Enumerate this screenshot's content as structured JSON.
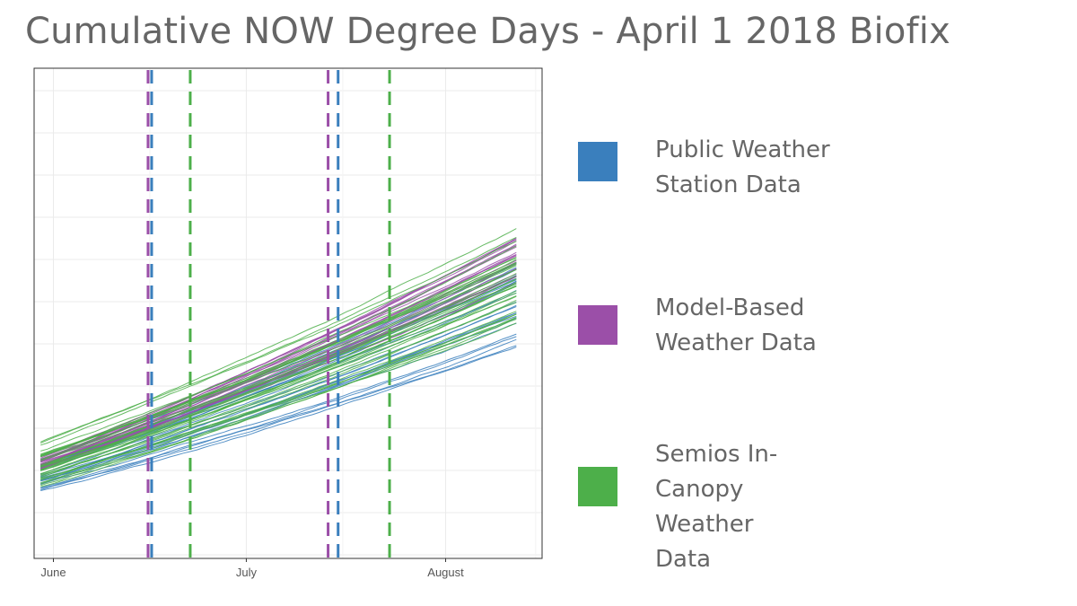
{
  "title": "Cumulative NOW Degree Days - April 1 2018 Biofix",
  "legend": [
    {
      "label": "Public Weather Station Data",
      "color": "#3a7fbd"
    },
    {
      "label": "Model-Based Weather Data",
      "color": "#9b4fa8"
    },
    {
      "label": "Semios In-Canopy Weather Data",
      "color": "#4daf4a"
    }
  ],
  "chart_data": {
    "type": "line",
    "title": "",
    "xlabel": "",
    "ylabel": "",
    "x_ticks": [
      {
        "label": "June",
        "date": "2018-06-01"
      },
      {
        "label": "July",
        "date": "2018-07-01"
      },
      {
        "label": "August",
        "date": "2018-08-01"
      }
    ],
    "x_range": [
      "2018-05-29",
      "2018-08-16"
    ],
    "y_range": [
      0,
      1
    ],
    "x_start": "2018-05-30",
    "x_end": "2018-08-12",
    "grid": true,
    "legend_position": "right",
    "y_tick_labels": "none",
    "series_groups": [
      {
        "name": "Public Weather Station Data",
        "color": "#3a7fbd",
        "count": 25,
        "start_min": 0.13,
        "start_max": 0.21,
        "end_min": 0.42,
        "end_max": 0.63
      },
      {
        "name": "Model-Based Weather Data",
        "color": "#9b4fa8",
        "count": 22,
        "start_min": 0.18,
        "start_max": 0.21,
        "end_min": 0.56,
        "end_max": 0.67
      },
      {
        "name": "Semios In-Canopy Weather Data",
        "color": "#4daf4a",
        "count": 35,
        "start_min": 0.14,
        "start_max": 0.25,
        "end_min": 0.47,
        "end_max": 0.69
      }
    ],
    "vertical_lines": [
      {
        "date": "2018-06-16",
        "color": "#3a7fbd"
      },
      {
        "date": "2018-06-16",
        "color": "#9b4fa8"
      },
      {
        "date": "2018-06-22",
        "color": "#4daf4a"
      },
      {
        "date": "2018-07-14",
        "color": "#9b4fa8"
      },
      {
        "date": "2018-07-15",
        "color": "#3a7fbd"
      },
      {
        "date": "2018-07-23",
        "color": "#4daf4a"
      }
    ]
  }
}
